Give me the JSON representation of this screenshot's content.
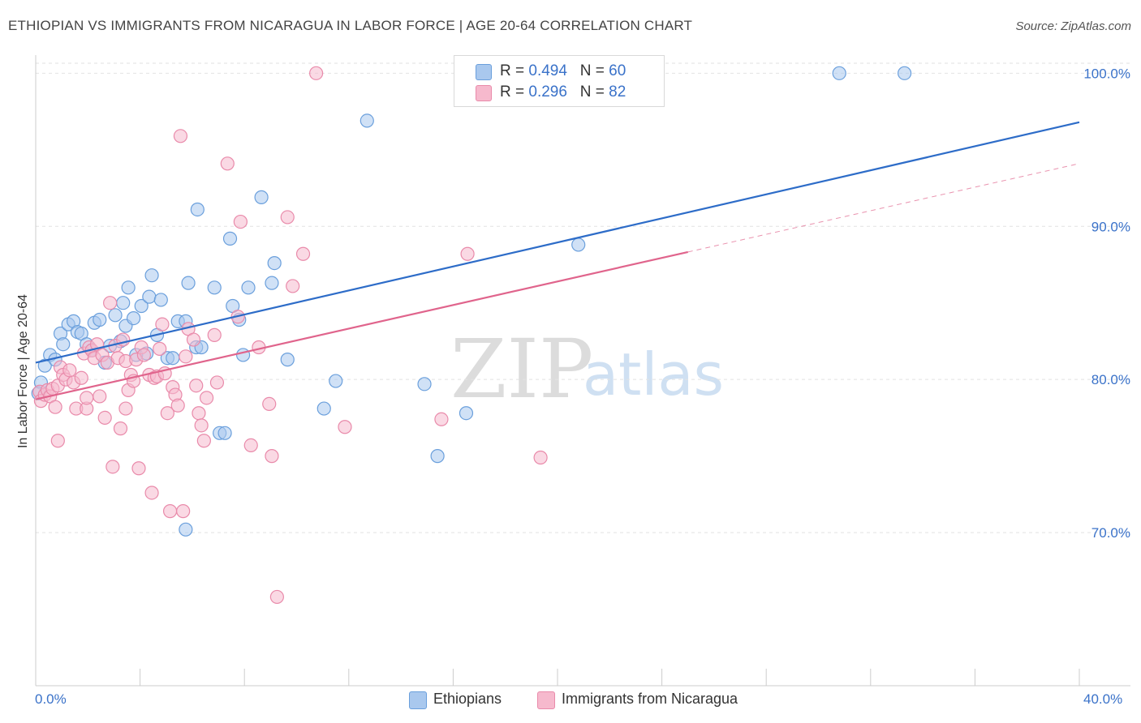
{
  "header": {
    "title": "ETHIOPIAN VS IMMIGRANTS FROM NICARAGUA IN LABOR FORCE | AGE 20-64 CORRELATION CHART",
    "source": "Source: ZipAtlas.com"
  },
  "watermark": {
    "zip": "ZIP",
    "atlas": "atlas"
  },
  "legend_top": {
    "rows": [
      {
        "r_label": "R = ",
        "r_value": "0.494",
        "n_label": "N = ",
        "n_value": "60"
      },
      {
        "r_label": "R = ",
        "r_value": "0.296",
        "n_label": "N = ",
        "n_value": "82"
      }
    ]
  },
  "colors": {
    "blue_fill": "#a9c8ee",
    "blue_stroke": "#6a9fdc",
    "blue_line": "#2d6cc8",
    "pink_fill": "#f6b9cd",
    "pink_stroke": "#e98aaa",
    "pink_line": "#e0648c",
    "tick_text": "#3a72c9",
    "grid": "#e2e2e2"
  },
  "chart_data": {
    "type": "scatter",
    "title": "ETHIOPIAN VS IMMIGRANTS FROM NICARAGUA IN LABOR FORCE | AGE 20-64 CORRELATION CHART",
    "xlabel": "",
    "ylabel": "In Labor Force | Age 20-64",
    "xlim": [
      0,
      40
    ],
    "ylim": [
      60,
      101.5
    ],
    "x_tick_labels": [
      "0.0%",
      "40.0%"
    ],
    "y_ticks": [
      70,
      80,
      90,
      100
    ],
    "y_tick_labels": [
      "70.0%",
      "80.0%",
      "90.0%",
      "100.0%"
    ],
    "grid": true,
    "legend": [
      "Ethiopians",
      "Immigrants from Nicaragua"
    ],
    "series": [
      {
        "name": "Ethiopians",
        "color": "#6a9fdc",
        "r": 0.494,
        "n": 60,
        "trend": {
          "x0": 0,
          "y0": 81.1,
          "x1": 40,
          "y1": 96.8,
          "dash_from": 40
        },
        "points": [
          [
            0.2,
            79.8
          ],
          [
            0.35,
            80.9
          ],
          [
            0.55,
            81.6
          ],
          [
            0.75,
            81.3
          ],
          [
            0.95,
            83.0
          ],
          [
            1.05,
            82.3
          ],
          [
            1.25,
            83.6
          ],
          [
            1.45,
            83.8
          ],
          [
            1.6,
            83.1
          ],
          [
            1.75,
            83.0
          ],
          [
            1.95,
            82.3
          ],
          [
            2.15,
            81.9
          ],
          [
            2.25,
            83.7
          ],
          [
            2.45,
            83.9
          ],
          [
            2.65,
            81.1
          ],
          [
            2.85,
            82.2
          ],
          [
            3.05,
            84.2
          ],
          [
            3.25,
            82.5
          ],
          [
            3.35,
            85.0
          ],
          [
            3.45,
            83.5
          ],
          [
            3.55,
            86.0
          ],
          [
            3.75,
            84.0
          ],
          [
            3.85,
            81.6
          ],
          [
            4.05,
            84.8
          ],
          [
            4.25,
            81.7
          ],
          [
            4.35,
            85.4
          ],
          [
            4.45,
            86.8
          ],
          [
            4.65,
            82.9
          ],
          [
            4.8,
            85.2
          ],
          [
            5.05,
            81.4
          ],
          [
            5.25,
            81.4
          ],
          [
            5.45,
            83.8
          ],
          [
            5.75,
            83.8
          ],
          [
            5.85,
            86.3
          ],
          [
            6.15,
            82.1
          ],
          [
            6.35,
            82.1
          ],
          [
            6.2,
            91.1
          ],
          [
            6.85,
            86.0
          ],
          [
            7.05,
            76.5
          ],
          [
            7.25,
            76.5
          ],
          [
            7.45,
            89.2
          ],
          [
            7.55,
            84.8
          ],
          [
            7.8,
            83.9
          ],
          [
            7.95,
            81.6
          ],
          [
            8.15,
            86.0
          ],
          [
            8.65,
            91.9
          ],
          [
            9.05,
            86.3
          ],
          [
            9.15,
            87.6
          ],
          [
            9.65,
            81.3
          ],
          [
            11.5,
            79.9
          ],
          [
            11.05,
            78.1
          ],
          [
            12.7,
            96.9
          ],
          [
            14.9,
            79.7
          ],
          [
            15.4,
            75.0
          ],
          [
            16.5,
            77.8
          ],
          [
            20.8,
            88.8
          ],
          [
            30.8,
            100.0
          ],
          [
            33.3,
            100.0
          ],
          [
            5.75,
            70.2
          ],
          [
            0.1,
            79.1
          ]
        ]
      },
      {
        "name": "Immigrants from Nicaragua",
        "color": "#e98aaa",
        "r": 0.296,
        "n": 82,
        "trend": {
          "x0": 0,
          "y0": 78.7,
          "x1": 40,
          "y1": 94.1,
          "dash_from": 25
        },
        "points": [
          [
            0.15,
            79.2
          ],
          [
            0.2,
            78.6
          ],
          [
            0.35,
            79.0
          ],
          [
            0.45,
            79.3
          ],
          [
            0.55,
            78.9
          ],
          [
            0.65,
            79.4
          ],
          [
            0.75,
            78.2
          ],
          [
            0.85,
            79.6
          ],
          [
            0.95,
            80.8
          ],
          [
            1.05,
            80.3
          ],
          [
            1.15,
            80.0
          ],
          [
            1.3,
            80.6
          ],
          [
            1.45,
            79.8
          ],
          [
            1.55,
            78.1
          ],
          [
            1.75,
            80.1
          ],
          [
            1.85,
            81.7
          ],
          [
            1.95,
            78.1
          ],
          [
            2.05,
            82.1
          ],
          [
            2.15,
            81.9
          ],
          [
            2.25,
            81.4
          ],
          [
            2.35,
            82.3
          ],
          [
            2.45,
            78.9
          ],
          [
            2.55,
            81.6
          ],
          [
            2.65,
            77.5
          ],
          [
            2.75,
            81.1
          ],
          [
            2.85,
            85.0
          ],
          [
            2.95,
            74.3
          ],
          [
            3.05,
            82.2
          ],
          [
            3.15,
            81.4
          ],
          [
            3.25,
            76.8
          ],
          [
            3.35,
            82.6
          ],
          [
            3.45,
            81.2
          ],
          [
            3.55,
            79.3
          ],
          [
            3.65,
            80.3
          ],
          [
            3.75,
            79.9
          ],
          [
            3.85,
            81.3
          ],
          [
            3.95,
            74.2
          ],
          [
            4.05,
            82.1
          ],
          [
            4.15,
            81.6
          ],
          [
            4.35,
            80.3
          ],
          [
            4.45,
            72.6
          ],
          [
            4.55,
            80.1
          ],
          [
            4.65,
            80.2
          ],
          [
            4.75,
            82.0
          ],
          [
            4.85,
            83.6
          ],
          [
            4.95,
            80.4
          ],
          [
            5.05,
            77.8
          ],
          [
            5.15,
            71.4
          ],
          [
            5.25,
            79.5
          ],
          [
            5.35,
            79.0
          ],
          [
            5.45,
            78.3
          ],
          [
            5.55,
            95.9
          ],
          [
            5.65,
            71.4
          ],
          [
            5.75,
            81.5
          ],
          [
            5.85,
            83.3
          ],
          [
            6.05,
            82.6
          ],
          [
            6.15,
            79.6
          ],
          [
            6.25,
            77.8
          ],
          [
            6.35,
            77.0
          ],
          [
            6.45,
            76.0
          ],
          [
            6.55,
            78.8
          ],
          [
            6.85,
            82.9
          ],
          [
            6.95,
            79.8
          ],
          [
            7.35,
            94.1
          ],
          [
            7.75,
            84.1
          ],
          [
            7.85,
            90.3
          ],
          [
            8.25,
            75.7
          ],
          [
            8.55,
            82.1
          ],
          [
            8.95,
            78.4
          ],
          [
            9.05,
            75.0
          ],
          [
            9.25,
            65.8
          ],
          [
            9.65,
            90.6
          ],
          [
            9.85,
            86.1
          ],
          [
            10.25,
            88.2
          ],
          [
            10.75,
            100.0
          ],
          [
            11.85,
            76.9
          ],
          [
            15.55,
            77.4
          ],
          [
            16.55,
            88.2
          ],
          [
            19.35,
            74.9
          ],
          [
            0.85,
            76.0
          ],
          [
            1.95,
            78.8
          ],
          [
            3.45,
            78.1
          ]
        ]
      }
    ]
  },
  "bottom_legend": {
    "item1": "Ethiopians",
    "item2": "Immigrants from Nicaragua"
  }
}
